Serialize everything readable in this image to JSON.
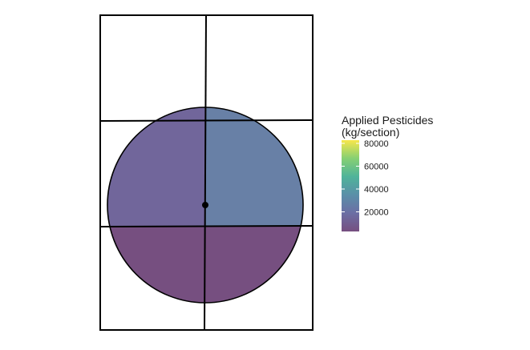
{
  "chart_data": {
    "type": "heatmap",
    "title": "",
    "xlabel": "",
    "ylabel": "",
    "grid": false,
    "description_of_sections": "circular field split into 4 sections by section grid lines",
    "sections": [
      {
        "name": "upper-left",
        "value": 14000,
        "color": "#71669b"
      },
      {
        "name": "upper-right",
        "value": 26000,
        "color": "#6880a6"
      },
      {
        "name": "lower-left",
        "value": 7000,
        "color": "#764f80"
      },
      {
        "name": "lower-right",
        "value": 7000,
        "color": "#764f80"
      }
    ],
    "legend": {
      "title_line1": "Applied Pesticides",
      "title_line2": "(kg/section)",
      "position": "right",
      "min": 0,
      "max": 80000,
      "ticks": [
        {
          "label": "80000",
          "value": 80000
        },
        {
          "label": "60000",
          "value": 60000
        },
        {
          "label": "40000",
          "value": 40000
        },
        {
          "label": "20000",
          "value": 20000
        }
      ],
      "colors": [
        "#fde725",
        "#7ad151",
        "#22a884",
        "#2a788e",
        "#414487",
        "#440154"
      ]
    },
    "pivot_marker": "center-point"
  }
}
